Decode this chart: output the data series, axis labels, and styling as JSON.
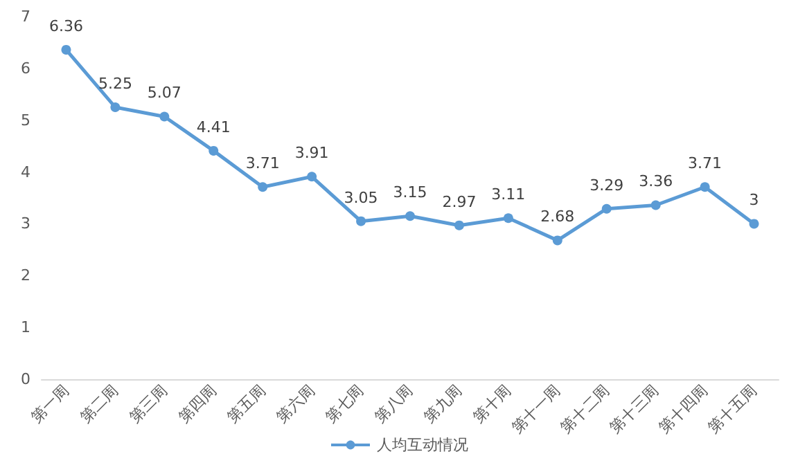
{
  "chart_data": {
    "type": "line",
    "categories": [
      "第一周",
      "第二周",
      "第三周",
      "第四周",
      "第五周",
      "第六周",
      "第七周",
      "第八周",
      "第九周",
      "第十周",
      "第十一周",
      "第十二周",
      "第十三周",
      "第十四周",
      "第十五周"
    ],
    "series": [
      {
        "name": "人均互动情况",
        "color": "#5b9bd5",
        "values": [
          6.36,
          5.25,
          5.07,
          4.41,
          3.71,
          3.91,
          3.05,
          3.15,
          2.97,
          3.11,
          2.68,
          3.29,
          3.36,
          3.71,
          3
        ]
      }
    ],
    "ylim": [
      0,
      7
    ],
    "yticks": [
      0,
      1,
      2,
      3,
      4,
      5,
      6,
      7
    ],
    "grid": false,
    "legend": "bottom",
    "marker": "circle",
    "line_style": "solid",
    "data_labels": true
  }
}
